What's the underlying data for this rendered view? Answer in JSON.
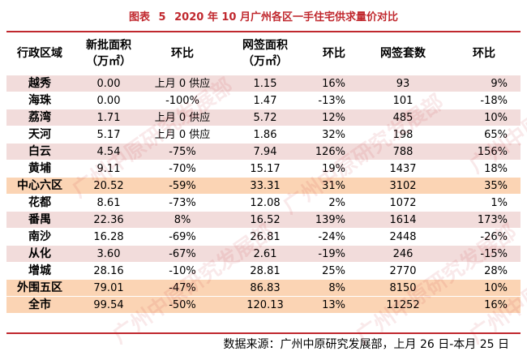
{
  "title": {
    "prefix": "图表",
    "number": "5",
    "text": "2020 年 10 月广州各区一手住宅供求量价对比"
  },
  "header": {
    "district": "行政区域",
    "new_area": "新批面积",
    "new_area_unit": "（万㎡）",
    "new_mom": "环比",
    "signed_area": "网签面积",
    "signed_area_unit": "（万㎡）",
    "signed_mom": "环比",
    "signed_units": "网签套数",
    "units_mom": "环比"
  },
  "rows": [
    {
      "district": "越秀",
      "new_area": "0.00",
      "new_mom": "上月 0 供应",
      "signed_area": "1.15",
      "signed_mom": "16%",
      "units": "93",
      "units_mom": "9%"
    },
    {
      "district": "海珠",
      "new_area": "0.00",
      "new_mom": "-100%",
      "signed_area": "1.47",
      "signed_mom": "-13%",
      "units": "101",
      "units_mom": "-18%"
    },
    {
      "district": "荔湾",
      "new_area": "1.71",
      "new_mom": "上月 0 供应",
      "signed_area": "5.72",
      "signed_mom": "12%",
      "units": "485",
      "units_mom": "10%"
    },
    {
      "district": "天河",
      "new_area": "5.17",
      "new_mom": "上月 0 供应",
      "signed_area": "1.86",
      "signed_mom": "32%",
      "units": "198",
      "units_mom": "65%"
    },
    {
      "district": "白云",
      "new_area": "4.54",
      "new_mom": "-75%",
      "signed_area": "7.94",
      "signed_mom": "126%",
      "units": "788",
      "units_mom": "156%"
    },
    {
      "district": "黄埔",
      "new_area": "9.11",
      "new_mom": "-70%",
      "signed_area": "15.17",
      "signed_mom": "19%",
      "units": "1437",
      "units_mom": "18%"
    },
    {
      "district": "中心六区",
      "new_area": "20.52",
      "new_mom": "-59%",
      "signed_area": "33.31",
      "signed_mom": "31%",
      "units": "3102",
      "units_mom": "35%"
    },
    {
      "district": "花都",
      "new_area": "8.61",
      "new_mom": "-73%",
      "signed_area": "12.08",
      "signed_mom": "2%",
      "units": "1072",
      "units_mom": "1%"
    },
    {
      "district": "番禺",
      "new_area": "22.36",
      "new_mom": "8%",
      "signed_area": "16.52",
      "signed_mom": "139%",
      "units": "1614",
      "units_mom": "173%"
    },
    {
      "district": "南沙",
      "new_area": "16.28",
      "new_mom": "-69%",
      "signed_area": "26.81",
      "signed_mom": "-24%",
      "units": "2448",
      "units_mom": "-26%"
    },
    {
      "district": "从化",
      "new_area": "3.60",
      "new_mom": "-67%",
      "signed_area": "2.61",
      "signed_mom": "-19%",
      "units": "246",
      "units_mom": "-15%"
    },
    {
      "district": "增城",
      "new_area": "28.16",
      "new_mom": "-10%",
      "signed_area": "28.81",
      "signed_mom": "25%",
      "units": "2770",
      "units_mom": "28%"
    },
    {
      "district": "外围五区",
      "new_area": "79.01",
      "new_mom": "-47%",
      "signed_area": "86.83",
      "signed_mom": "8%",
      "units": "8150",
      "units_mom": "10%"
    },
    {
      "district": "全市",
      "new_area": "99.54",
      "new_mom": "-50%",
      "signed_area": "120.13",
      "signed_mom": "13%",
      "units": "11252",
      "units_mom": "16%"
    }
  ],
  "row_styles": [
    "pink",
    "white",
    "pink",
    "white",
    "pink",
    "white",
    "orange",
    "white",
    "pink",
    "white",
    "pink",
    "white",
    "orange",
    "orange"
  ],
  "source": "数据来源：广州中原研究发展部，上月 26 日-本月 25 日",
  "watermark": "广州中原研究发展部",
  "colors": {
    "title": "#c0282e",
    "pink_row": "#f2dcdb",
    "orange_row": "#fbd4b4"
  }
}
